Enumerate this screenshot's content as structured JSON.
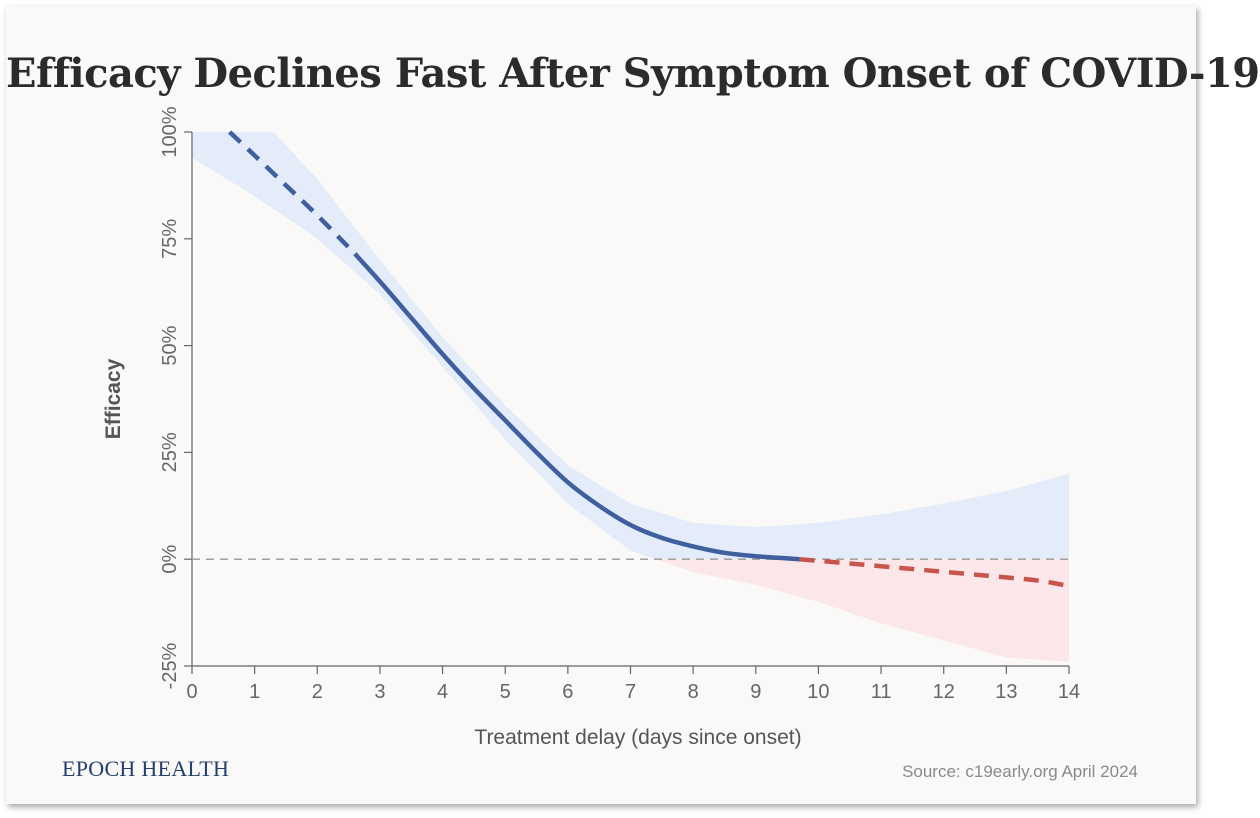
{
  "chart_data": {
    "type": "line",
    "title": "Efficacy Declines Fast After Symptom Onset of COVID-19",
    "xlabel": "Treatment delay (days since onset)",
    "ylabel": "Efficacy",
    "xlim": [
      0,
      14
    ],
    "ylim": [
      -25,
      100
    ],
    "x_ticks": [
      "0",
      "1",
      "2",
      "3",
      "4",
      "5",
      "6",
      "7",
      "8",
      "9",
      "10",
      "11",
      "12",
      "13",
      "14"
    ],
    "y_ticks": [
      "-25%",
      "0%",
      "25%",
      "50%",
      "75%",
      "100%"
    ],
    "y_tick_values": [
      -25,
      0,
      25,
      50,
      75,
      100
    ],
    "reference_line": {
      "y": 0,
      "style": "dashed",
      "color": "#999999"
    },
    "colors": {
      "positive": "#3f5f9e",
      "negative": "#c8554b",
      "band_positive": "#e3ecf8",
      "band_negative": "#fbe6ea"
    },
    "series": [
      {
        "style": "dashed",
        "color": "#3f5f9e",
        "x": [
          0.6,
          1.0,
          1.5,
          2.0,
          2.6
        ],
        "y": [
          100,
          94.5,
          87.5,
          80.5,
          71.5
        ]
      },
      {
        "style": "solid",
        "color": "#3f5f9e",
        "x": [
          2.6,
          3.0,
          3.5,
          4.0,
          4.5,
          5.0,
          5.5,
          6.0,
          6.5,
          7.0,
          7.5,
          8.0,
          8.5,
          9.0,
          9.5,
          9.7
        ],
        "y": [
          71.5,
          65,
          56.5,
          48,
          40,
          32.5,
          25,
          18,
          12.5,
          8,
          5,
          3,
          1.5,
          0.7,
          0.2,
          0
        ]
      },
      {
        "style": "dashed",
        "color": "#c8554b",
        "x": [
          9.7,
          10.5,
          11.5,
          12.5,
          13.5,
          14.0
        ],
        "y": [
          0,
          -1,
          -2.3,
          -3.6,
          -5,
          -6.3
        ]
      }
    ],
    "confidence_band": {
      "x": [
        0,
        1.0,
        1.3,
        2.0,
        3.0,
        4.0,
        5.0,
        6.0,
        7.0,
        8.0,
        9.0,
        10.0,
        11.0,
        12.0,
        13.0,
        14.0
      ],
      "upper": [
        100,
        100,
        100,
        89,
        70,
        52,
        36,
        22,
        13,
        8.5,
        7.5,
        8.5,
        10.5,
        13,
        16,
        20
      ],
      "lower": [
        94,
        85,
        82,
        75,
        62,
        45,
        28,
        13,
        2,
        -3,
        -6,
        -10,
        -15,
        -19,
        -23,
        -24
      ]
    }
  },
  "branding": {
    "publisher": "EPOCH HEALTH",
    "source": "Source: c19early.org April 2024"
  }
}
